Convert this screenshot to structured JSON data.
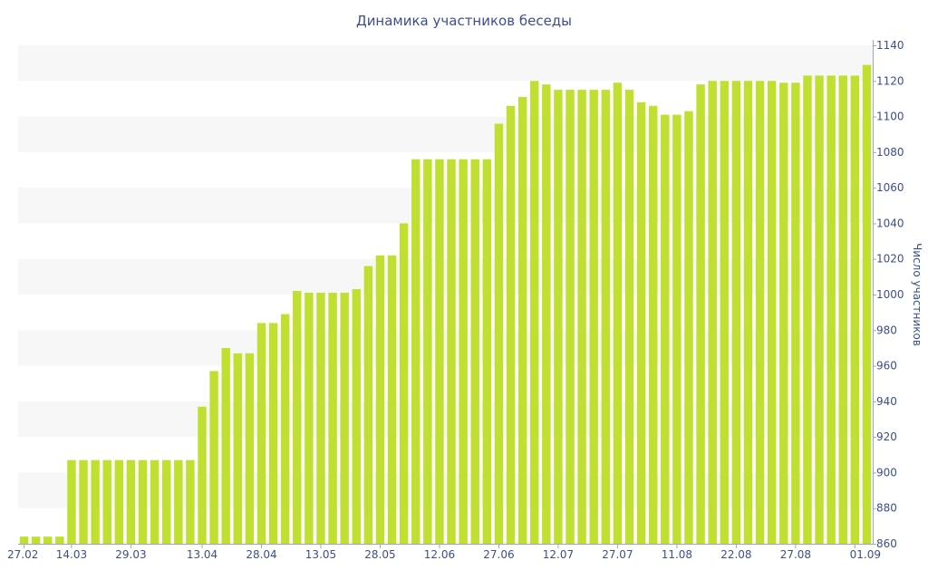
{
  "chart_data": {
    "type": "bar",
    "title": "Динамика участников беседы",
    "ylabel": "Число участников",
    "ylim": [
      860,
      1140
    ],
    "yticks": [
      860,
      880,
      900,
      920,
      940,
      960,
      980,
      1000,
      1020,
      1040,
      1060,
      1080,
      1100,
      1120,
      1140
    ],
    "y_axis_position": "right",
    "grid": "alternating horizontal bands",
    "bar_color": "#bfe030",
    "band_color": "#f7f7f7",
    "text_color": "#3b4f8f",
    "xtick_labels": [
      "27.02",
      "14.03",
      "29.03",
      "13.04",
      "28.04",
      "13.05",
      "28.05",
      "12.06",
      "27.06",
      "12.07",
      "27.07",
      "11.08",
      "22.08",
      "27.08",
      "01.09"
    ],
    "xtick_indices": [
      0,
      4,
      9,
      15,
      20,
      25,
      30,
      35,
      40,
      45,
      50,
      55,
      60,
      65,
      70
    ],
    "values": [
      864,
      864,
      864,
      864,
      907,
      907,
      907,
      907,
      907,
      907,
      907,
      907,
      907,
      907,
      907,
      937,
      957,
      970,
      967,
      967,
      984,
      984,
      989,
      1002,
      1001,
      1001,
      1001,
      1001,
      1003,
      1016,
      1022,
      1022,
      1040,
      1076,
      1076,
      1076,
      1076,
      1076,
      1076,
      1076,
      1096,
      1106,
      1111,
      1120,
      1118,
      1115,
      1115,
      1115,
      1115,
      1115,
      1119,
      1115,
      1108,
      1106,
      1101,
      1101,
      1103,
      1118,
      1120,
      1120,
      1120,
      1120,
      1120,
      1120,
      1119,
      1119,
      1123,
      1123,
      1123,
      1123,
      1123,
      1129
    ]
  }
}
